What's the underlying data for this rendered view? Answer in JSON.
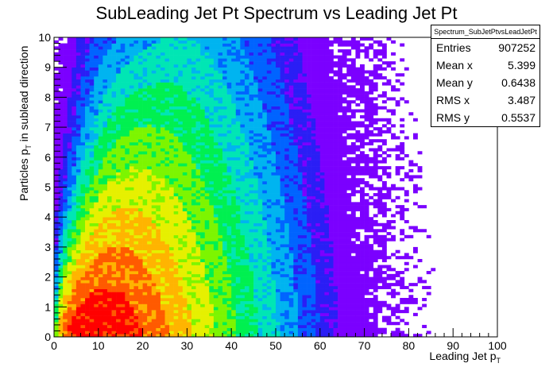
{
  "title": "SubLeading Jet Pt Spectrum vs Leading Jet Pt",
  "stats": {
    "name": "Spectrum_SubJetPtvsLeadJetPt",
    "rows": [
      {
        "label": "Entries",
        "value": "907252"
      },
      {
        "label": "Mean x",
        "value": "5.399"
      },
      {
        "label": "Mean y",
        "value": "0.6438"
      },
      {
        "label": "RMS x",
        "value": "3.487"
      },
      {
        "label": "RMS y",
        "value": "0.5537"
      }
    ]
  },
  "chart_data": {
    "type": "heatmap",
    "title": "SubLeading Jet Pt Spectrum vs Leading Jet Pt",
    "xlabel": "Leading Jet p",
    "xlabel_sub": "T",
    "ylabel": "Particles p",
    "ylabel_sub": "T",
    "ylabel_suffix": " in sublead direction",
    "xlim": [
      0,
      100
    ],
    "ylim": [
      0,
      10
    ],
    "xticks": [
      "0",
      "10",
      "20",
      "30",
      "40",
      "50",
      "60",
      "70",
      "80",
      "90",
      "100"
    ],
    "yticks": [
      "0",
      "1",
      "2",
      "3",
      "4",
      "5",
      "6",
      "7",
      "8",
      "9",
      "10"
    ],
    "bins": {
      "x": 100,
      "y": 100
    },
    "distribution": {
      "mean_x": 5.399,
      "mean_y": 0.6438,
      "rms_x": 3.487,
      "rms_y": 0.5537,
      "entries": 907252
    },
    "palette": [
      "#7b00ff",
      "#2a1ef5",
      "#0064ff",
      "#00b4f0",
      "#00e6b4",
      "#00f050",
      "#7df500",
      "#e6f000",
      "#ffb400",
      "#ff5a00",
      "#ff0000"
    ],
    "grid": false
  }
}
